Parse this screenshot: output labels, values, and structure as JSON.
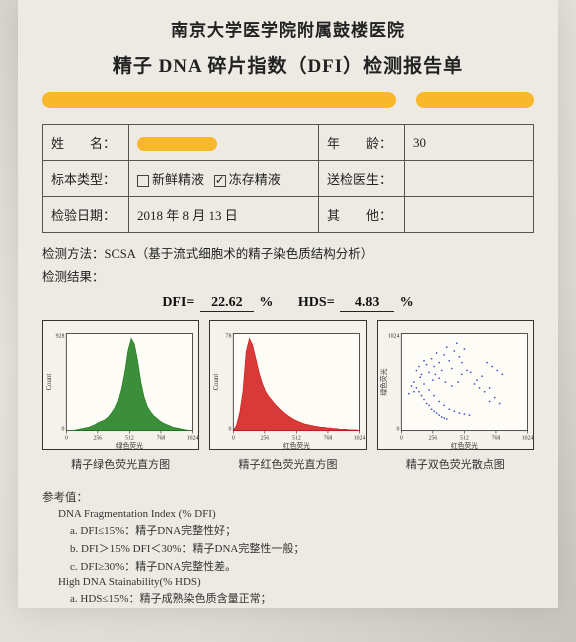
{
  "header": {
    "hospital": "南京大学医学院附属鼓楼医院",
    "title": "精子 DNA 碎片指数（DFI）检测报告单"
  },
  "info": {
    "name_label": "姓　　名：",
    "age_label": "年　　龄：",
    "age_value": "30",
    "sample_type_label": "标本类型：",
    "sample_fresh": "新鲜精液",
    "sample_frozen": "冻存精液",
    "sample_fresh_checked": "false",
    "sample_frozen_checked": "true",
    "doctor_label": "送检医生：",
    "test_date_label": "检验日期：",
    "test_date_value": "2018 年 8 月 13 日",
    "other_label": "其　　他："
  },
  "method": {
    "label": "检测方法：",
    "value": "SCSA（基于流式细胞术的精子染色质结构分析）",
    "result_label": "检测结果："
  },
  "metrics": {
    "dfi_label": "DFI=",
    "dfi_value": "22.62",
    "hds_label": "HDS=",
    "hds_value": "4.83",
    "pct": "%"
  },
  "charts": {
    "green": {
      "caption": "精子绿色荧光直方图",
      "x_axis": "绿色荧光",
      "y_axis": "Count",
      "y_max_tick": "928",
      "ticks": [
        "0",
        "256",
        "512",
        "768",
        "1024"
      ],
      "color": "#1a7a1a",
      "profile": [
        0,
        0,
        0,
        1,
        2,
        3,
        4,
        5,
        7,
        9,
        12,
        14,
        16,
        20,
        26,
        33,
        44,
        62,
        86,
        118,
        136,
        128,
        104,
        72,
        50,
        36,
        28,
        22,
        18,
        14,
        11,
        9,
        7,
        5,
        4,
        3,
        2,
        1,
        0,
        0
      ]
    },
    "red": {
      "caption": "精子红色荧光直方图",
      "x_axis": "红色荧光",
      "y_axis": "Count",
      "y_max_tick": "78",
      "ticks": [
        "0",
        "256",
        "512",
        "768",
        "1024"
      ],
      "color": "#d01818",
      "profile": [
        0,
        8,
        28,
        60,
        120,
        140,
        130,
        110,
        88,
        72,
        60,
        52,
        46,
        40,
        35,
        30,
        26,
        22,
        19,
        16,
        14,
        12,
        10,
        9,
        8,
        7,
        6,
        5,
        5,
        4,
        4,
        3,
        3,
        2,
        2,
        2,
        1,
        1,
        1,
        0
      ]
    },
    "scatter": {
      "caption": "精子双色荧光散点图",
      "x_axis": "红色荧光",
      "y_axis": "绿色荧光",
      "y_max_tick": "1024",
      "ticks": [
        "0",
        "256",
        "512",
        "768",
        "1024"
      ],
      "color": "#1838c0",
      "points": [
        [
          12,
          62
        ],
        [
          14,
          66
        ],
        [
          16,
          58
        ],
        [
          18,
          72
        ],
        [
          20,
          68
        ],
        [
          22,
          60
        ],
        [
          24,
          74
        ],
        [
          26,
          66
        ],
        [
          28,
          80
        ],
        [
          30,
          70
        ],
        [
          32,
          62
        ],
        [
          34,
          78
        ],
        [
          36,
          86
        ],
        [
          38,
          72
        ],
        [
          40,
          64
        ],
        [
          42,
          82
        ],
        [
          44,
          90
        ],
        [
          46,
          76
        ],
        [
          48,
          70
        ],
        [
          50,
          84
        ],
        [
          10,
          50
        ],
        [
          12,
          44
        ],
        [
          14,
          40
        ],
        [
          16,
          36
        ],
        [
          18,
          32
        ],
        [
          20,
          28
        ],
        [
          22,
          26
        ],
        [
          24,
          22
        ],
        [
          26,
          20
        ],
        [
          28,
          18
        ],
        [
          30,
          16
        ],
        [
          32,
          14
        ],
        [
          34,
          13
        ],
        [
          36,
          12
        ],
        [
          15,
          55
        ],
        [
          18,
          48
        ],
        [
          22,
          42
        ],
        [
          26,
          36
        ],
        [
          30,
          30
        ],
        [
          34,
          26
        ],
        [
          38,
          22
        ],
        [
          42,
          20
        ],
        [
          46,
          18
        ],
        [
          50,
          17
        ],
        [
          54,
          16
        ],
        [
          58,
          48
        ],
        [
          60,
          52
        ],
        [
          62,
          44
        ],
        [
          64,
          56
        ],
        [
          55,
          60
        ],
        [
          48,
          58
        ],
        [
          52,
          62
        ],
        [
          45,
          50
        ],
        [
          40,
          46
        ],
        [
          35,
          50
        ],
        [
          30,
          54
        ],
        [
          27,
          58
        ],
        [
          25,
          52
        ],
        [
          8,
          46
        ],
        [
          10,
          40
        ],
        [
          6,
          38
        ],
        [
          70,
          30
        ],
        [
          74,
          34
        ],
        [
          78,
          28
        ],
        [
          68,
          70
        ],
        [
          72,
          66
        ],
        [
          76,
          62
        ],
        [
          80,
          58
        ],
        [
          66,
          40
        ],
        [
          70,
          44
        ]
      ]
    }
  },
  "reference": {
    "header": "参考值：",
    "dfi_title": "DNA Fragmentation Index (% DFI)",
    "dfi_a": "a. DFI≤15%：精子DNA完整性好；",
    "dfi_b": "b. DFI＞15% DFI＜30%：精子DNA完整性一般；",
    "dfi_c": "c. DFI≥30%：精子DNA完整性差。",
    "hds_title": "High DNA Stainability(% HDS)",
    "hds_a": "a. HDS≤15%：精子成熟染色质含量正常；"
  }
}
